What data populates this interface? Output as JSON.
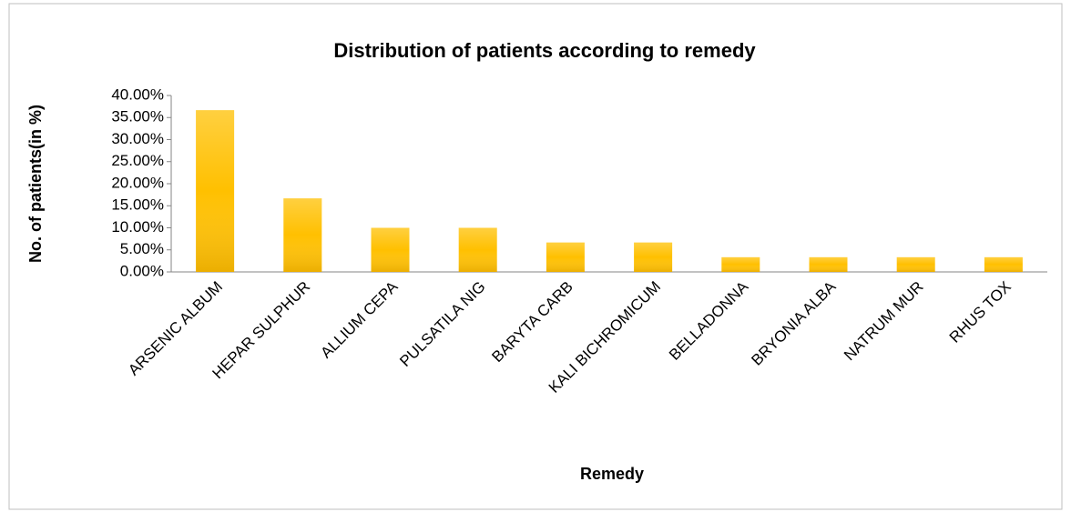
{
  "chart_data": {
    "type": "bar",
    "title": "Distribution of patients according to remedy",
    "x_label": "Remedy",
    "y_label": "No. of patients(in %)",
    "categories": [
      "ARSENIC ALBUM",
      "HEPAR SULPHUR",
      "ALLIUM CEPA",
      "PULSATILA NIG",
      "BARYTA CARB",
      "KALI BICHROMICUM",
      "BELLADONNA",
      "BRYONIA ALBA",
      "NATRUM MUR",
      "RHUS TOX"
    ],
    "values": [
      36.67,
      16.67,
      10,
      10,
      6.67,
      6.67,
      3.33,
      3.33,
      3.33,
      3.33
    ],
    "color": "#ffc000",
    "ylim": [
      0,
      40
    ],
    "yticks": [
      {
        "value": 0,
        "label": "0.00%"
      },
      {
        "value": 5,
        "label": "5.00%"
      },
      {
        "value": 10,
        "label": "10.00%"
      },
      {
        "value": 15,
        "label": "15.00%"
      },
      {
        "value": 20,
        "label": "20.00%"
      },
      {
        "value": 25,
        "label": "25.00%"
      },
      {
        "value": 30,
        "label": "30.00%"
      },
      {
        "value": 35,
        "label": "35.00%"
      },
      {
        "value": 40,
        "label": "40.00%"
      }
    ],
    "grid": false
  }
}
